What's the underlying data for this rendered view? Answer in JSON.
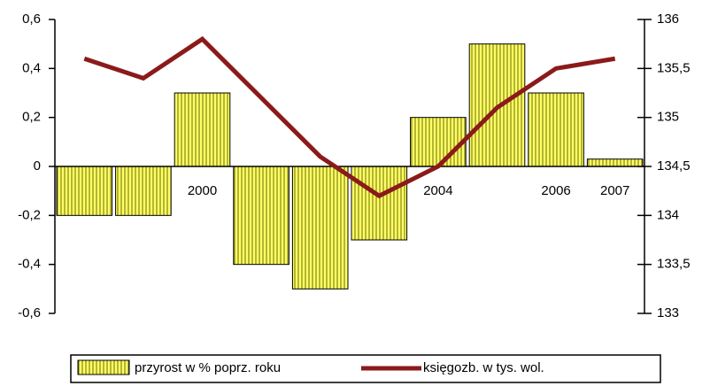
{
  "chart_data": {
    "type": "bar",
    "categories": [
      null,
      null,
      "2000",
      null,
      null,
      null,
      "2004",
      null,
      "2006",
      "2007"
    ],
    "series": [
      {
        "name": "przyrost w % poprz. roku",
        "type": "bar",
        "color": "#ffff66",
        "values": [
          -0.2,
          -0.2,
          0.3,
          -0.4,
          -0.5,
          -0.3,
          0.2,
          0.5,
          0.3,
          0.03
        ]
      },
      {
        "name": "księgozb. w tys. wol.",
        "type": "line",
        "axis": "y2",
        "color": "#8b1a1a",
        "values": [
          135.6,
          135.4,
          135.8,
          135.2,
          134.6,
          134.2,
          134.5,
          135.1,
          135.5,
          135.6
        ]
      }
    ],
    "ylim": [
      -0.6,
      0.6
    ],
    "yticks": [
      {
        "value": -0.6,
        "label": "-0,6"
      },
      {
        "value": -0.4,
        "label": "-0,4"
      },
      {
        "value": -0.2,
        "label": "-0,2"
      },
      0,
      {
        "value": 0.2,
        "label": "0,2"
      },
      {
        "value": 0.4,
        "label": "0,4"
      },
      {
        "value": 0.6,
        "label": "0,6"
      }
    ],
    "y2lim": [
      133,
      136
    ],
    "y2ticks": [
      133,
      {
        "value": 133.5,
        "label": "133,5"
      },
      134,
      {
        "value": 134.5,
        "label": "134,5"
      },
      135,
      {
        "value": 135.5,
        "label": "135,5"
      },
      136
    ],
    "legend": "bottom"
  }
}
